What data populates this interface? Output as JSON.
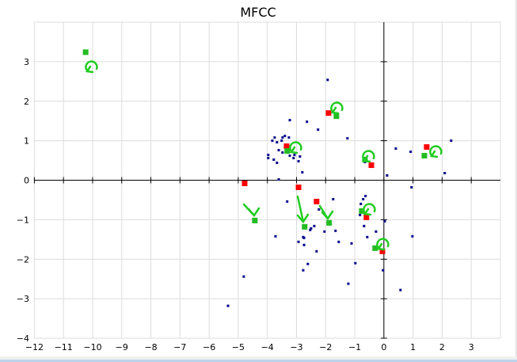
{
  "chart_data": {
    "type": "scatter",
    "title": "MFCC",
    "xlabel": "",
    "ylabel": "",
    "xlim": [
      -12,
      4
    ],
    "ylim": [
      -4,
      4
    ],
    "xticks": [
      -12,
      -11,
      -10,
      -9,
      -8,
      -7,
      -6,
      -5,
      -4,
      -3,
      -2,
      -1,
      0,
      1,
      2,
      3
    ],
    "yticks": [
      -4,
      -3,
      -2,
      -1,
      0,
      1,
      2,
      3
    ],
    "grid": true,
    "axes_cross_at_origin": true,
    "series": [
      {
        "color": "#00008b",
        "marker": "small-square",
        "points": [
          [
            -1.93,
            2.54
          ],
          [
            -3.23,
            1.52
          ],
          [
            -2.64,
            1.48
          ],
          [
            -2.26,
            1.28
          ],
          [
            -1.25,
            1.06
          ],
          [
            -3.75,
            1.08
          ],
          [
            -3.48,
            1.08
          ],
          [
            -3.26,
            1.08
          ],
          [
            -3.4,
            1.12
          ],
          [
            -3.83,
            1.0
          ],
          [
            -3.67,
            0.96
          ],
          [
            -3.51,
            1.0
          ],
          [
            -3.97,
            0.64
          ],
          [
            -3.97,
            0.56
          ],
          [
            -3.78,
            0.52
          ],
          [
            -3.67,
            0.44
          ],
          [
            -3.61,
            0.76
          ],
          [
            -3.48,
            0.7
          ],
          [
            -3.23,
            0.62
          ],
          [
            -3.1,
            0.56
          ],
          [
            -3.07,
            0.64
          ],
          [
            -2.88,
            0.6
          ],
          [
            -2.93,
            0.48
          ],
          [
            -2.8,
            0.2
          ],
          [
            -3.61,
            0.02
          ],
          [
            -0.65,
            0.46
          ],
          [
            0.11,
            0.12
          ],
          [
            -3.32,
            -0.54
          ],
          [
            -1.74,
            -0.48
          ],
          [
            -2.23,
            -0.74
          ],
          [
            -0.63,
            -0.4
          ],
          [
            -0.71,
            -0.48
          ],
          [
            -0.79,
            -0.6
          ],
          [
            -0.82,
            -0.88
          ],
          [
            0.95,
            -0.18
          ],
          [
            0.03,
            -1.04
          ],
          [
            -0.68,
            -1.16
          ],
          [
            -0.27,
            -1.3
          ],
          [
            -0.57,
            -1.44
          ],
          [
            -3.72,
            -1.42
          ],
          [
            -2.39,
            -1.16
          ],
          [
            -2.5,
            -1.22
          ],
          [
            -2.53,
            -1.26
          ],
          [
            -2.04,
            -1.3
          ],
          [
            -1.66,
            -1.28
          ],
          [
            -2.77,
            -1.44
          ],
          [
            -2.74,
            -1.46
          ],
          [
            -2.93,
            -1.56
          ],
          [
            -2.74,
            -1.64
          ],
          [
            -1.55,
            -1.56
          ],
          [
            -1.11,
            -1.6
          ],
          [
            -2.31,
            -1.8
          ],
          [
            0.98,
            -1.42
          ],
          [
            -0.98,
            -2.1
          ],
          [
            -2.61,
            -2.12
          ],
          [
            -2.77,
            -2.28
          ],
          [
            -4.81,
            -2.44
          ],
          [
            -0.03,
            -2.28
          ],
          [
            -1.22,
            -2.62
          ],
          [
            0.57,
            -2.78
          ],
          [
            -5.35,
            -3.18
          ],
          [
            0.41,
            0.8
          ],
          [
            0.92,
            0.72
          ],
          [
            2.31,
            1.0
          ],
          [
            2.09,
            0.18
          ]
        ]
      },
      {
        "color": "#ff0000",
        "marker": "square",
        "points": [
          [
            -4.78,
            -0.08
          ],
          [
            -2.93,
            -0.18
          ],
          [
            -2.31,
            -0.54
          ],
          [
            -3.34,
            0.86
          ],
          [
            -1.9,
            1.7
          ],
          [
            -0.43,
            0.38
          ],
          [
            -0.6,
            -0.94
          ],
          [
            -0.05,
            -1.8
          ],
          [
            1.47,
            0.84
          ]
        ]
      },
      {
        "color": "#22bb22",
        "marker": "square",
        "points": [
          [
            -10.24,
            3.24
          ],
          [
            -4.43,
            -1.02
          ],
          [
            -2.72,
            -1.18
          ],
          [
            -1.88,
            -1.08
          ],
          [
            -0.76,
            -0.78
          ],
          [
            -0.3,
            -1.72
          ],
          [
            -0.65,
            0.52
          ],
          [
            -1.63,
            1.62
          ],
          [
            -3.32,
            0.74
          ],
          [
            1.39,
            0.62
          ]
        ]
      }
    ],
    "annotation_color": "#22cc22"
  }
}
